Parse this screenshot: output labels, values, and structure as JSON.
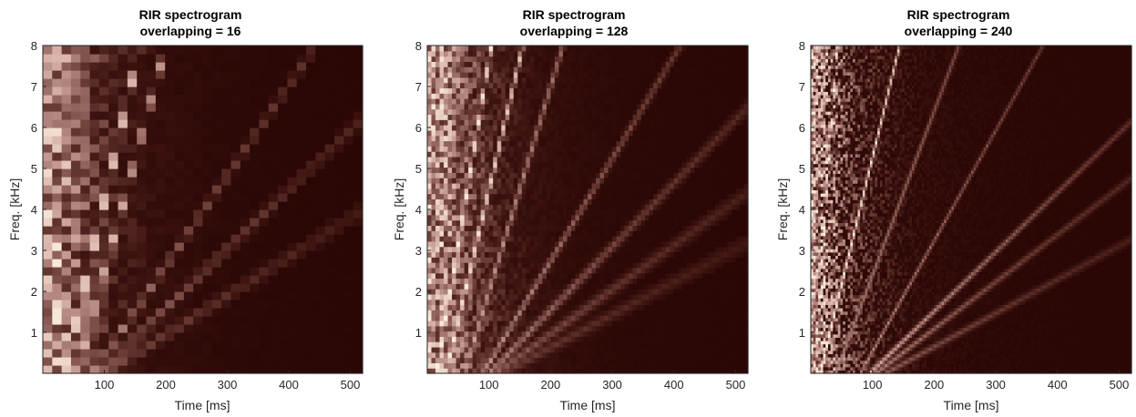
{
  "figure": {
    "background": "#ffffff",
    "colormap": [
      "#2a0705",
      "#3d1410",
      "#6a3b35",
      "#a47670",
      "#d8b2a8",
      "#f6e6d6",
      "#fff5dc"
    ]
  },
  "chart_data": [
    {
      "type": "heatmap",
      "title_line1": "RIR spectrogram",
      "title_line2": "overlapping = 16",
      "xlabel": "Time [ms]",
      "ylabel": "Freq. [kHz]",
      "xlim": [
        0,
        520
      ],
      "ylim": [
        0,
        8
      ],
      "xticks": [
        100,
        200,
        300,
        400,
        500
      ],
      "yticks": [
        1,
        2,
        3,
        4,
        5,
        6,
        7,
        8
      ],
      "overlap": 16,
      "grid": {
        "time_bins": 34,
        "freq_bins": 40
      },
      "direct_lines": [
        {
          "t_start": 35,
          "slope_khz_per_ms": 0.065,
          "strength": 1.0
        },
        {
          "t_start": 55,
          "slope_khz_per_ms": 0.055,
          "strength": 0.75
        }
      ],
      "reflection_lines": [
        {
          "t_start": 80,
          "slope_khz_per_ms": 0.022,
          "strength": 0.5
        },
        {
          "t_start": 90,
          "slope_khz_per_ms": 0.0145,
          "strength": 0.45
        },
        {
          "t_start": 100,
          "slope_khz_per_ms": 0.0095,
          "strength": 0.35
        }
      ]
    },
    {
      "type": "heatmap",
      "title_line1": "RIR spectrogram",
      "title_line2": "overlapping = 128",
      "xlabel": "Time [ms]",
      "ylabel": "Freq. [kHz]",
      "xlim": [
        0,
        520
      ],
      "ylim": [
        0,
        8
      ],
      "xticks": [
        100,
        200,
        300,
        400,
        500
      ],
      "yticks": [
        1,
        2,
        3,
        4,
        5,
        6,
        7,
        8
      ],
      "overlap": 128,
      "grid": {
        "time_bins": 78,
        "freq_bins": 62
      },
      "direct_lines": [
        {
          "t_start": 15,
          "slope_khz_per_ms": 0.09,
          "strength": 1.0
        },
        {
          "t_start": 30,
          "slope_khz_per_ms": 0.064,
          "strength": 0.9
        },
        {
          "t_start": 60,
          "slope_khz_per_ms": 0.05,
          "strength": 0.6
        }
      ],
      "reflection_lines": [
        {
          "t_start": 90,
          "slope_khz_per_ms": 0.025,
          "strength": 0.55
        },
        {
          "t_start": 100,
          "slope_khz_per_ms": 0.0155,
          "strength": 0.5
        },
        {
          "t_start": 110,
          "slope_khz_per_ms": 0.0108,
          "strength": 0.4
        },
        {
          "t_start": 120,
          "slope_khz_per_ms": 0.008,
          "strength": 0.3
        }
      ]
    },
    {
      "type": "heatmap",
      "title_line1": "RIR spectrogram",
      "title_line2": "overlapping = 240",
      "xlabel": "Time [ms]",
      "ylabel": "Freq. [kHz]",
      "xlim": [
        0,
        520
      ],
      "ylim": [
        0,
        8
      ],
      "xticks": [
        100,
        200,
        300,
        400,
        500
      ],
      "yticks": [
        1,
        2,
        3,
        4,
        5,
        6,
        7,
        8
      ],
      "overlap": 240,
      "grid": {
        "time_bins": 130,
        "freq_bins": 100
      },
      "direct_lines": [
        {
          "t_start": 5,
          "slope_khz_per_ms": 0.21,
          "strength": 1.0
        },
        {
          "t_start": 15,
          "slope_khz_per_ms": 0.062,
          "strength": 1.0
        },
        {
          "t_start": 40,
          "slope_khz_per_ms": 0.04,
          "strength": 0.55
        }
      ],
      "reflection_lines": [
        {
          "t_start": 80,
          "slope_khz_per_ms": 0.027,
          "strength": 0.55
        },
        {
          "t_start": 95,
          "slope_khz_per_ms": 0.0145,
          "strength": 0.65
        },
        {
          "t_start": 105,
          "slope_khz_per_ms": 0.0115,
          "strength": 0.5
        },
        {
          "t_start": 120,
          "slope_khz_per_ms": 0.0082,
          "strength": 0.4
        }
      ]
    }
  ]
}
